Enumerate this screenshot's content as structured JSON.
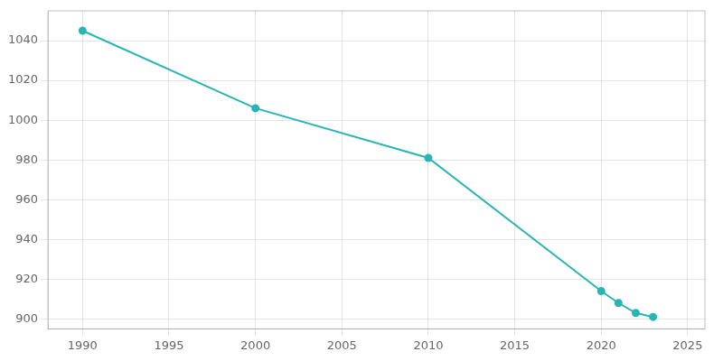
{
  "chart_data": {
    "type": "line",
    "x": [
      1990,
      2000,
      2010,
      2020,
      2021,
      2022,
      2023
    ],
    "values": [
      1045,
      1006,
      981,
      914,
      908,
      903,
      901
    ],
    "color": "#2ab5b5",
    "marker": "circle",
    "xlim": [
      1988,
      2026
    ],
    "ylim": [
      895,
      1055
    ],
    "xticks": [
      1990,
      1995,
      2000,
      2005,
      2010,
      2015,
      2020,
      2025
    ],
    "yticks": [
      900,
      920,
      940,
      960,
      980,
      1000,
      1020,
      1040
    ],
    "grid": true
  }
}
